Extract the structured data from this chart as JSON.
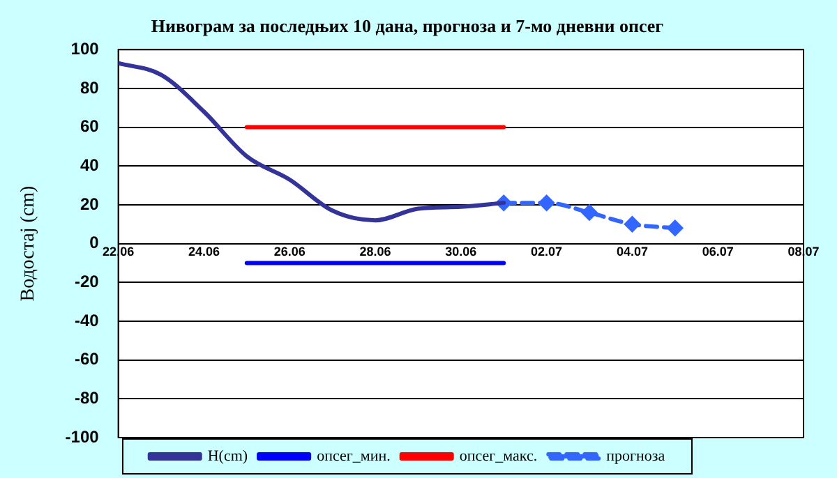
{
  "chart_data": {
    "type": "line",
    "title": "Нивограм за последњих 10 дана, прогноза и 7-мо дневни опсег",
    "ylabel": "Водостај (cm)",
    "xlim": [
      "--06-22",
      "--07-08"
    ],
    "xticks": [
      {
        "value": "--06-22",
        "label": "22.06"
      },
      {
        "value": "--06-24",
        "label": "24.06"
      },
      {
        "value": "--06-26",
        "label": "26.06"
      },
      {
        "value": "--06-28",
        "label": "28.06"
      },
      {
        "value": "--06-30",
        "label": "30.06"
      },
      {
        "value": "--07-02",
        "label": "02.07"
      },
      {
        "value": "--07-04",
        "label": "04.07"
      },
      {
        "value": "--07-06",
        "label": "06.07"
      },
      {
        "value": "--07-08",
        "label": "08.07"
      }
    ],
    "ylim": [
      -100,
      100
    ],
    "yticks": [
      -100,
      -80,
      -60,
      -40,
      -20,
      0,
      20,
      40,
      60,
      80,
      100
    ],
    "grid": "y",
    "legend": "bottom",
    "series": [
      {
        "name": "H(cm)",
        "color": "#333399",
        "marker": "none",
        "line_style": "solid",
        "x": [
          "--06-22",
          "--06-23",
          "--06-24",
          "--06-25",
          "--06-26",
          "--06-27",
          "--06-28",
          "--06-29",
          "--06-30",
          "--07-01"
        ],
        "values": [
          93,
          87,
          68,
          45,
          33,
          17,
          12,
          18,
          19,
          21
        ]
      },
      {
        "name": "опсег_мин.",
        "color": "#0000ff",
        "marker": "none",
        "line_style": "solid",
        "x": [
          "--06-25",
          "--07-01"
        ],
        "values": [
          -10,
          -10
        ]
      },
      {
        "name": "опсег_макс.",
        "color": "#ff0000",
        "marker": "none",
        "line_style": "solid",
        "x": [
          "--06-25",
          "--07-01"
        ],
        "values": [
          60,
          60
        ]
      },
      {
        "name": "прогноза",
        "color": "#3366ff",
        "marker": "diamond",
        "line_style": "dashed",
        "x": [
          "--07-01",
          "--07-02",
          "--07-03",
          "--07-04",
          "--07-05"
        ],
        "values": [
          21,
          21,
          16,
          10,
          8
        ]
      }
    ]
  }
}
